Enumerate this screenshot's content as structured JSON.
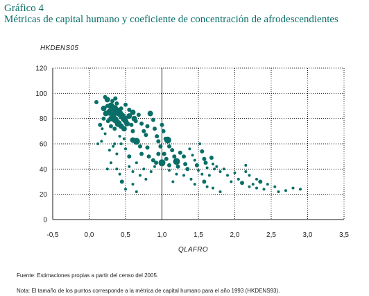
{
  "header": {
    "label": "Gráfico 4",
    "title": "Métricas de capital humano y coeficiente de concentración de afrodescendientes"
  },
  "footer": {
    "source": "Fuente: Estimaciones propias a partir del censo del 2005.",
    "note": "Nota: El tamaño de los puntos corresponde a la métrica de capital humano para el año 1993 (HKDENS93)."
  },
  "colors": {
    "points": "#0a6e68",
    "grid": "#1a1a1a",
    "title": "#0a6e68"
  },
  "chart_data": {
    "type": "scatter",
    "title": "",
    "xlabel": "QLAFRO",
    "ylabel": "HKDENS05",
    "size_variable": "HKDENS93",
    "xlim": [
      -0.5,
      3.5
    ],
    "ylim": [
      0,
      120
    ],
    "xticks": [
      "-0,5",
      "0,0",
      "0,5",
      "1,0",
      "1,5",
      "2,0",
      "2,5",
      "3,0",
      "3,5"
    ],
    "yticks": [
      "0",
      "20",
      "40",
      "60",
      "80",
      "100",
      "120"
    ],
    "grid": "dotted",
    "reference_line_x": 1.0,
    "points": [
      [
        0.1,
        93,
        3
      ],
      [
        0.22,
        97,
        3
      ],
      [
        0.25,
        95,
        4
      ],
      [
        0.3,
        90,
        5
      ],
      [
        0.35,
        88,
        5
      ],
      [
        0.38,
        92,
        3
      ],
      [
        0.4,
        86,
        5
      ],
      [
        0.42,
        84,
        5
      ],
      [
        0.45,
        82,
        5
      ],
      [
        0.48,
        80,
        5
      ],
      [
        0.5,
        78,
        4
      ],
      [
        0.52,
        76,
        4
      ],
      [
        0.55,
        82,
        4
      ],
      [
        0.28,
        85,
        5
      ],
      [
        0.3,
        80,
        4
      ],
      [
        0.33,
        83,
        5
      ],
      [
        0.36,
        79,
        5
      ],
      [
        0.4,
        76,
        5
      ],
      [
        0.44,
        74,
        4
      ],
      [
        0.48,
        72,
        4
      ],
      [
        0.2,
        88,
        4
      ],
      [
        0.23,
        84,
        4
      ],
      [
        0.26,
        78,
        3
      ],
      [
        0.3,
        74,
        3
      ],
      [
        0.35,
        72,
        3
      ],
      [
        0.5,
        91,
        3
      ],
      [
        0.55,
        87,
        3
      ],
      [
        0.6,
        85,
        4
      ],
      [
        0.62,
        80,
        4
      ],
      [
        0.58,
        75,
        3
      ],
      [
        0.6,
        70,
        3
      ],
      [
        0.64,
        78,
        3
      ],
      [
        0.68,
        83,
        3
      ],
      [
        0.72,
        76,
        3
      ],
      [
        0.75,
        70,
        3
      ],
      [
        0.78,
        67,
        3
      ],
      [
        0.8,
        74,
        3
      ],
      [
        0.84,
        84,
        4
      ],
      [
        0.88,
        79,
        3
      ],
      [
        0.9,
        72,
        3
      ],
      [
        0.93,
        66,
        3
      ],
      [
        0.95,
        62,
        3
      ],
      [
        0.98,
        58,
        3
      ],
      [
        1.0,
        75,
        3
      ],
      [
        1.02,
        70,
        3
      ],
      [
        1.05,
        64,
        3
      ],
      [
        1.08,
        63,
        5
      ],
      [
        1.1,
        58,
        3
      ],
      [
        0.15,
        75,
        3
      ],
      [
        0.18,
        72,
        2
      ],
      [
        0.22,
        68,
        2
      ],
      [
        0.12,
        60,
        2
      ],
      [
        0.17,
        62,
        2
      ],
      [
        0.28,
        55,
        2
      ],
      [
        0.33,
        58,
        2
      ],
      [
        0.38,
        52,
        2
      ],
      [
        0.44,
        60,
        2
      ],
      [
        0.5,
        56,
        2
      ],
      [
        0.55,
        50,
        3
      ],
      [
        0.6,
        63,
        4
      ],
      [
        0.65,
        62,
        5
      ],
      [
        0.7,
        58,
        3
      ],
      [
        0.72,
        52,
        3
      ],
      [
        0.8,
        57,
        3
      ],
      [
        0.82,
        50,
        3
      ],
      [
        0.88,
        47,
        3
      ],
      [
        0.92,
        45,
        3
      ],
      [
        0.95,
        52,
        3
      ],
      [
        1.0,
        45,
        5
      ],
      [
        1.03,
        52,
        3
      ],
      [
        1.06,
        48,
        3
      ],
      [
        1.1,
        43,
        3
      ],
      [
        1.14,
        55,
        3
      ],
      [
        1.17,
        50,
        3
      ],
      [
        1.2,
        46,
        5
      ],
      [
        1.22,
        42,
        3
      ],
      [
        1.25,
        53,
        3
      ],
      [
        1.3,
        50,
        3
      ],
      [
        1.32,
        44,
        3
      ],
      [
        1.35,
        40,
        3
      ],
      [
        1.38,
        56,
        2
      ],
      [
        1.42,
        51,
        2
      ],
      [
        1.45,
        47,
        2
      ],
      [
        1.48,
        43,
        3
      ],
      [
        1.5,
        39,
        2
      ],
      [
        1.52,
        60,
        2
      ],
      [
        1.55,
        54,
        3
      ],
      [
        1.58,
        48,
        3
      ],
      [
        1.6,
        45,
        3
      ],
      [
        1.62,
        41,
        2
      ],
      [
        1.65,
        35,
        2
      ],
      [
        1.68,
        49,
        3
      ],
      [
        1.7,
        44,
        2
      ],
      [
        1.72,
        40,
        2
      ],
      [
        1.75,
        42,
        2
      ],
      [
        1.8,
        38,
        2
      ],
      [
        1.55,
        36,
        2
      ],
      [
        1.58,
        30,
        3
      ],
      [
        1.62,
        26,
        2
      ],
      [
        1.4,
        32,
        2
      ],
      [
        1.45,
        28,
        2
      ],
      [
        1.2,
        36,
        2
      ],
      [
        1.1,
        39,
        2
      ],
      [
        1.15,
        30,
        2
      ],
      [
        1.3,
        35,
        2
      ],
      [
        1.85,
        40,
        2
      ],
      [
        1.9,
        35,
        2
      ],
      [
        1.95,
        30,
        2
      ],
      [
        2.0,
        37,
        2
      ],
      [
        2.05,
        32,
        2
      ],
      [
        2.1,
        29,
        3
      ],
      [
        2.15,
        38,
        2
      ],
      [
        2.15,
        43,
        2
      ],
      [
        2.2,
        35,
        2
      ],
      [
        2.25,
        28,
        2
      ],
      [
        2.3,
        32,
        2
      ],
      [
        2.35,
        30,
        3
      ],
      [
        2.4,
        24,
        2
      ],
      [
        2.45,
        28,
        2
      ],
      [
        2.55,
        26,
        2
      ],
      [
        2.6,
        22,
        2
      ],
      [
        2.7,
        23,
        2
      ],
      [
        2.8,
        25,
        2
      ],
      [
        2.9,
        24,
        2
      ],
      [
        2.3,
        25,
        2
      ],
      [
        2.2,
        26,
        2
      ],
      [
        1.8,
        22,
        2
      ],
      [
        1.7,
        25,
        2
      ],
      [
        0.45,
        30,
        3
      ],
      [
        0.5,
        24,
        2
      ],
      [
        0.6,
        28,
        2
      ],
      [
        0.65,
        22,
        2
      ],
      [
        0.7,
        35,
        2
      ],
      [
        0.75,
        40,
        2
      ],
      [
        0.78,
        32,
        2
      ],
      [
        0.85,
        38,
        2
      ],
      [
        0.9,
        42,
        2
      ],
      [
        0.38,
        40,
        2
      ],
      [
        0.42,
        36,
        2
      ],
      [
        0.3,
        45,
        2
      ],
      [
        0.25,
        40,
        2
      ],
      [
        0.55,
        42,
        2
      ],
      [
        0.6,
        38,
        2
      ],
      [
        0.65,
        45,
        2
      ],
      [
        0.35,
        60,
        2
      ],
      [
        0.42,
        66,
        2
      ],
      [
        0.48,
        64,
        2
      ],
      [
        0.2,
        80,
        3
      ],
      [
        0.25,
        90,
        3
      ],
      [
        0.32,
        94,
        3
      ],
      [
        0.36,
        96,
        3
      ],
      [
        0.44,
        88,
        3
      ]
    ]
  }
}
